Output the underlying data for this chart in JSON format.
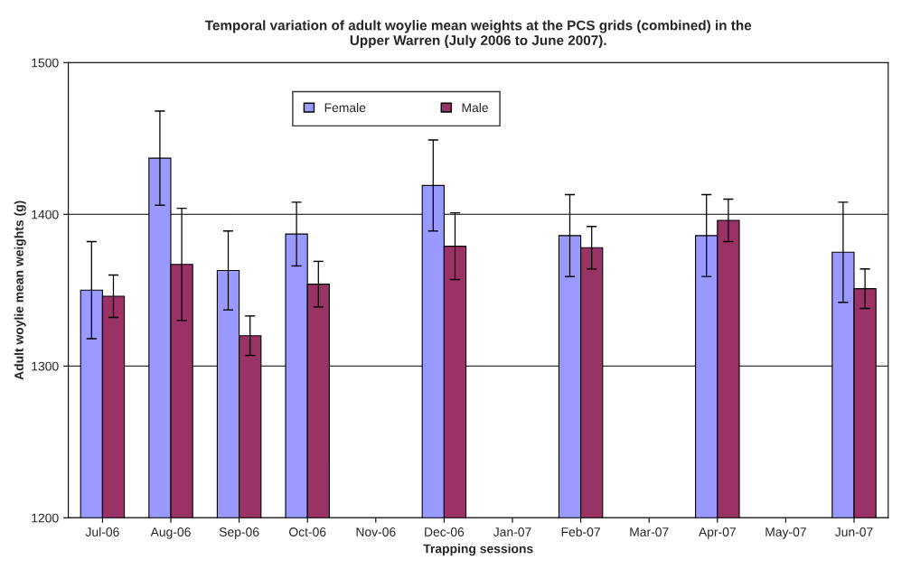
{
  "chart_data": {
    "type": "bar",
    "title": "Temporal variation of adult woylie mean weights at the PCS grids (combined) in the\nUpper Warren (July 2006 to June 2007).",
    "xlabel": "Trapping sessions",
    "ylabel": "Adult woylie mean weights (g)",
    "categories": [
      "Jul-06",
      "Aug-06",
      "Sep-06",
      "Oct-06",
      "Nov-06",
      "Dec-06",
      "Jan-07",
      "Feb-07",
      "Mar-07",
      "Apr-07",
      "May-07",
      "Jun-07"
    ],
    "series": [
      {
        "name": "Female",
        "color": "#9999ff",
        "values": [
          1350,
          1437,
          1363,
          1387,
          null,
          1419,
          null,
          1386,
          null,
          1386,
          null,
          1375
        ],
        "errors": [
          32,
          31,
          26,
          21,
          null,
          30,
          null,
          27,
          null,
          27,
          null,
          33
        ]
      },
      {
        "name": "Male",
        "color": "#993366",
        "values": [
          1346,
          1367,
          1320,
          1354,
          null,
          1379,
          null,
          1378,
          null,
          1396,
          null,
          1351
        ],
        "errors": [
          14,
          37,
          13,
          15,
          null,
          22,
          null,
          14,
          null,
          14,
          null,
          13
        ]
      }
    ],
    "ylim": [
      1200,
      1500
    ],
    "yticks": [
      1200,
      1300,
      1400,
      1500
    ],
    "grid": "y",
    "legend": "top"
  }
}
